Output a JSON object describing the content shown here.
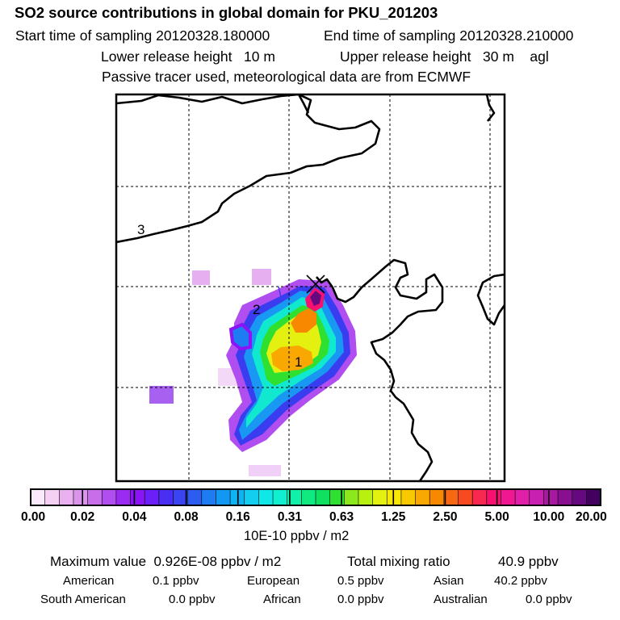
{
  "header": {
    "title": "SO2 source contributions in global domain for PKU_201203",
    "start_label": "Start time of sampling 20120328.180000",
    "end_label": "End time of sampling 20120328.210000",
    "lower_label": "Lower release height   10 m",
    "upper_label": "Upper release height   30 m    agl",
    "tracer_label": "Passive tracer used, meteorological data are from ECMWF"
  },
  "chart_data": {
    "type": "heatmap",
    "title": "SO2 source contributions in global domain for PKU_201203",
    "colorbar": {
      "unit": "10E-10 ppbv / m2",
      "tick_labels": [
        "0.00",
        "0.02",
        "0.04",
        "0.08",
        "0.16",
        "0.31",
        "0.63",
        "1.25",
        "2.50",
        "5.00",
        "10.00",
        "20.00"
      ],
      "colors": [
        "#fbeafb",
        "#f4d0f4",
        "#e9b2ef",
        "#db94eb",
        "#c86ee8",
        "#b04ef0",
        "#9a2cf2",
        "#8a14f6",
        "#6a20f6",
        "#4a2ef2",
        "#3a44f0",
        "#2c5cf0",
        "#1e7cf2",
        "#1298f2",
        "#10b2f2",
        "#14cef0",
        "#10e8e8",
        "#10f0d0",
        "#10f0a8",
        "#10e880",
        "#10e060",
        "#30e030",
        "#8ce81c",
        "#b8f010",
        "#e4f010",
        "#f8e808",
        "#f8c800",
        "#f8a800",
        "#f88800",
        "#f86810",
        "#f84a20",
        "#f82850",
        "#f81070",
        "#f01890",
        "#e020a8",
        "#c820b0",
        "#a818a0",
        "#881090",
        "#660880",
        "#440060"
      ]
    },
    "labels": [
      "1",
      "2",
      "3"
    ],
    "grid": "dashed",
    "receptor_marker": "x"
  },
  "footer": {
    "max_label": "Maximum value  0.926E-08 ppbv / m2",
    "total_label": "Total mixing ratio",
    "total_value": "40.9 ppbv",
    "regions": [
      {
        "name": "American",
        "value": "0.1 ppbv"
      },
      {
        "name": "European",
        "value": "0.5 ppbv"
      },
      {
        "name": "Asian",
        "value": "40.2 ppbv"
      },
      {
        "name": "South American",
        "value": "0.0 ppbv"
      },
      {
        "name": "African",
        "value": "0.0 ppbv"
      },
      {
        "name": "Australian",
        "value": "0.0 ppbv"
      }
    ]
  }
}
